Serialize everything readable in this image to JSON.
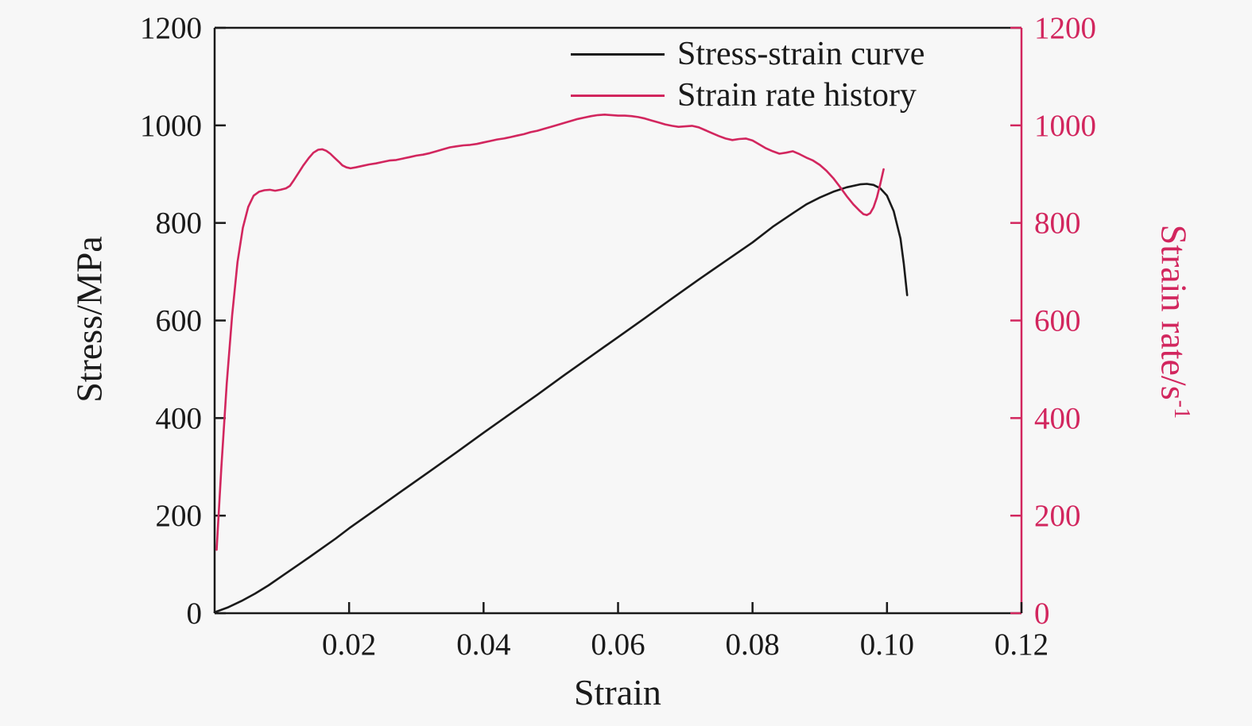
{
  "figure": {
    "background": "#f7f7f7",
    "axis_color": "#1a1a1a",
    "accent_color": "#d2265e",
    "xlabel": "Strain",
    "ylabel_left": "Stress/MPa",
    "ylabel_right_base": "Strain rate/s",
    "ylabel_right_exp": "-1"
  },
  "chart_data": {
    "type": "line",
    "title": "",
    "xlabel": "Strain",
    "ylabel_left": "Stress/MPa",
    "ylabel_right": "Strain rate/s^-1",
    "xlim": [
      0,
      0.12
    ],
    "ylim_left": [
      0,
      1200
    ],
    "ylim_right": [
      0,
      1200
    ],
    "grid": false,
    "legend_position": "top-center-inside",
    "x_tick_values": [
      0.02,
      0.04,
      0.06,
      0.08,
      0.1,
      0.12
    ],
    "x_tick_labels": [
      "0.02",
      "0.04",
      "0.06",
      "0.08",
      "0.10",
      "0.12"
    ],
    "y_tick_values": [
      0,
      200,
      400,
      600,
      800,
      1000,
      1200
    ],
    "y_tick_labels": [
      "0",
      "200",
      "400",
      "600",
      "800",
      "1000",
      "1200"
    ],
    "legend": [
      {
        "label": "Stress-strain curve",
        "color": "#1a1a1a",
        "axis": "left"
      },
      {
        "label": "Strain rate history",
        "color": "#d2265e",
        "axis": "right"
      }
    ],
    "series": [
      {
        "name": "Stress-strain curve",
        "axis": "left",
        "color": "#1a1a1a",
        "points": [
          [
            0,
            2
          ],
          [
            0.002,
            12
          ],
          [
            0.004,
            25
          ],
          [
            0.006,
            40
          ],
          [
            0.008,
            57
          ],
          [
            0.01,
            76
          ],
          [
            0.014,
            114
          ],
          [
            0.018,
            153
          ],
          [
            0.02,
            174
          ],
          [
            0.024,
            213
          ],
          [
            0.028,
            252
          ],
          [
            0.032,
            291
          ],
          [
            0.036,
            330
          ],
          [
            0.04,
            370
          ],
          [
            0.044,
            409
          ],
          [
            0.048,
            448
          ],
          [
            0.052,
            488
          ],
          [
            0.056,
            527
          ],
          [
            0.06,
            566
          ],
          [
            0.064,
            605
          ],
          [
            0.068,
            645
          ],
          [
            0.072,
            684
          ],
          [
            0.076,
            722
          ],
          [
            0.08,
            760
          ],
          [
            0.083,
            792
          ],
          [
            0.086,
            820
          ],
          [
            0.088,
            838
          ],
          [
            0.09,
            852
          ],
          [
            0.092,
            864
          ],
          [
            0.094,
            873
          ],
          [
            0.096,
            879
          ],
          [
            0.097,
            880
          ],
          [
            0.098,
            878
          ],
          [
            0.099,
            871
          ],
          [
            0.1,
            856
          ],
          [
            0.101,
            824
          ],
          [
            0.102,
            768
          ],
          [
            0.1025,
            716
          ],
          [
            0.103,
            652
          ]
        ]
      },
      {
        "name": "Strain rate history",
        "axis": "right",
        "color": "#d2265e",
        "points": [
          [
            0.0003,
            130
          ],
          [
            0.001,
            300
          ],
          [
            0.0018,
            470
          ],
          [
            0.0026,
            610
          ],
          [
            0.0034,
            720
          ],
          [
            0.0042,
            790
          ],
          [
            0.005,
            833
          ],
          [
            0.0058,
            856
          ],
          [
            0.0066,
            864
          ],
          [
            0.0074,
            867
          ],
          [
            0.0082,
            868
          ],
          [
            0.009,
            866
          ],
          [
            0.0098,
            868
          ],
          [
            0.0106,
            871
          ],
          [
            0.0112,
            876
          ],
          [
            0.0118,
            888
          ],
          [
            0.0125,
            903
          ],
          [
            0.0132,
            918
          ],
          [
            0.014,
            933
          ],
          [
            0.0147,
            944
          ],
          [
            0.0154,
            950
          ],
          [
            0.016,
            951
          ],
          [
            0.0166,
            948
          ],
          [
            0.0172,
            942
          ],
          [
            0.0178,
            934
          ],
          [
            0.0185,
            925
          ],
          [
            0.019,
            918
          ],
          [
            0.0196,
            914
          ],
          [
            0.0202,
            912
          ],
          [
            0.021,
            914
          ],
          [
            0.022,
            917
          ],
          [
            0.023,
            920
          ],
          [
            0.024,
            922
          ],
          [
            0.025,
            925
          ],
          [
            0.026,
            928
          ],
          [
            0.027,
            929
          ],
          [
            0.028,
            932
          ],
          [
            0.029,
            935
          ],
          [
            0.03,
            938
          ],
          [
            0.031,
            940
          ],
          [
            0.032,
            943
          ],
          [
            0.033,
            947
          ],
          [
            0.034,
            951
          ],
          [
            0.035,
            955
          ],
          [
            0.036,
            957
          ],
          [
            0.037,
            959
          ],
          [
            0.038,
            960
          ],
          [
            0.039,
            962
          ],
          [
            0.04,
            965
          ],
          [
            0.041,
            968
          ],
          [
            0.042,
            971
          ],
          [
            0.043,
            973
          ],
          [
            0.044,
            976
          ],
          [
            0.045,
            979
          ],
          [
            0.046,
            982
          ],
          [
            0.047,
            986
          ],
          [
            0.048,
            989
          ],
          [
            0.049,
            993
          ],
          [
            0.05,
            997
          ],
          [
            0.051,
            1001
          ],
          [
            0.052,
            1005
          ],
          [
            0.053,
            1009
          ],
          [
            0.054,
            1013
          ],
          [
            0.055,
            1016
          ],
          [
            0.056,
            1019
          ],
          [
            0.057,
            1021
          ],
          [
            0.058,
            1022
          ],
          [
            0.059,
            1021
          ],
          [
            0.06,
            1020
          ],
          [
            0.061,
            1020
          ],
          [
            0.062,
            1019
          ],
          [
            0.063,
            1017
          ],
          [
            0.064,
            1014
          ],
          [
            0.065,
            1010
          ],
          [
            0.066,
            1006
          ],
          [
            0.067,
            1002
          ],
          [
            0.068,
            999
          ],
          [
            0.069,
            997
          ],
          [
            0.07,
            998
          ],
          [
            0.071,
            999
          ],
          [
            0.072,
            996
          ],
          [
            0.073,
            990
          ],
          [
            0.074,
            984
          ],
          [
            0.075,
            978
          ],
          [
            0.076,
            973
          ],
          [
            0.077,
            970
          ],
          [
            0.078,
            972
          ],
          [
            0.079,
            973
          ],
          [
            0.08,
            969
          ],
          [
            0.081,
            961
          ],
          [
            0.082,
            953
          ],
          [
            0.083,
            947
          ],
          [
            0.084,
            942
          ],
          [
            0.085,
            944
          ],
          [
            0.086,
            947
          ],
          [
            0.087,
            941
          ],
          [
            0.088,
            934
          ],
          [
            0.089,
            928
          ],
          [
            0.09,
            919
          ],
          [
            0.091,
            907
          ],
          [
            0.092,
            892
          ],
          [
            0.093,
            874
          ],
          [
            0.094,
            855
          ],
          [
            0.095,
            838
          ],
          [
            0.096,
            824
          ],
          [
            0.0965,
            818
          ],
          [
            0.097,
            816
          ],
          [
            0.0975,
            820
          ],
          [
            0.098,
            832
          ],
          [
            0.0985,
            852
          ],
          [
            0.099,
            880
          ],
          [
            0.0995,
            910
          ]
        ]
      }
    ]
  }
}
